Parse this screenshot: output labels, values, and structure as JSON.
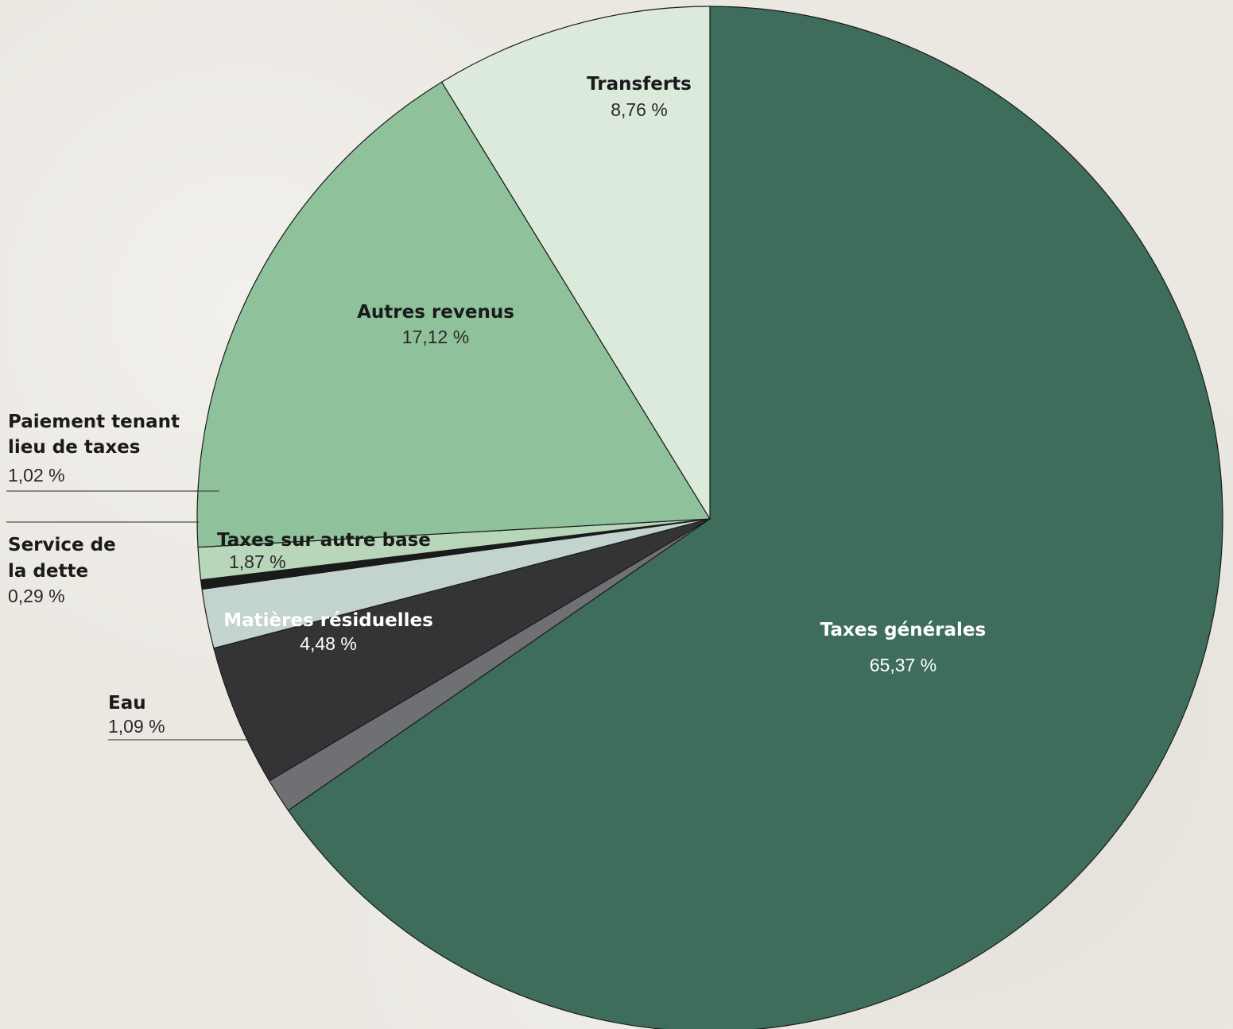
{
  "chart_data": {
    "type": "pie",
    "start_angle_deg": 0,
    "direction": "clockwise",
    "slices": [
      {
        "label": "Taxes générales",
        "value_text": "65,37 %",
        "value": 65.37,
        "color": "#3e6d5c",
        "label_color": "#ffffff",
        "value_color": "#ffffff"
      },
      {
        "label": "Eau",
        "value_text": "1,09 %",
        "value": 1.09,
        "color": "#6f7073",
        "label_color": "#1a1a1a",
        "value_color": "#2a2a2a"
      },
      {
        "label": "Matières résiduelles",
        "value_text": "4,48 %",
        "value": 4.48,
        "color": "#343437",
        "label_color": "#ffffff",
        "value_color": "#ffffff"
      },
      {
        "label": "Taxes sur autre base",
        "value_text": "1,87 %",
        "value": 1.87,
        "color": "#c3d4cf",
        "label_color": "#1a1a1a",
        "value_color": "#2a2a2a"
      },
      {
        "label": "Service de\nla dette",
        "value_text": "0,29 %",
        "value": 0.29,
        "color": "#1a1a1a",
        "label_color": "#1a1a1a",
        "value_color": "#2a2a2a"
      },
      {
        "label": "Paiement tenant\nlieu de taxes",
        "value_text": "1,02 %",
        "value": 1.02,
        "color": "#b7d6ba",
        "label_color": "#1a1a1a",
        "value_color": "#2a2a2a"
      },
      {
        "label": "Autres revenus",
        "value_text": "17,12 %",
        "value": 17.12,
        "color": "#8fc29a",
        "label_color": "#1a1a1a",
        "value_color": "#2a2a2a"
      },
      {
        "label": "Transferts",
        "value_text": "8,76 %",
        "value": 8.76,
        "color": "#dbeadb",
        "label_color": "#1a1a1a",
        "value_color": "#2a2a2a"
      }
    ]
  }
}
